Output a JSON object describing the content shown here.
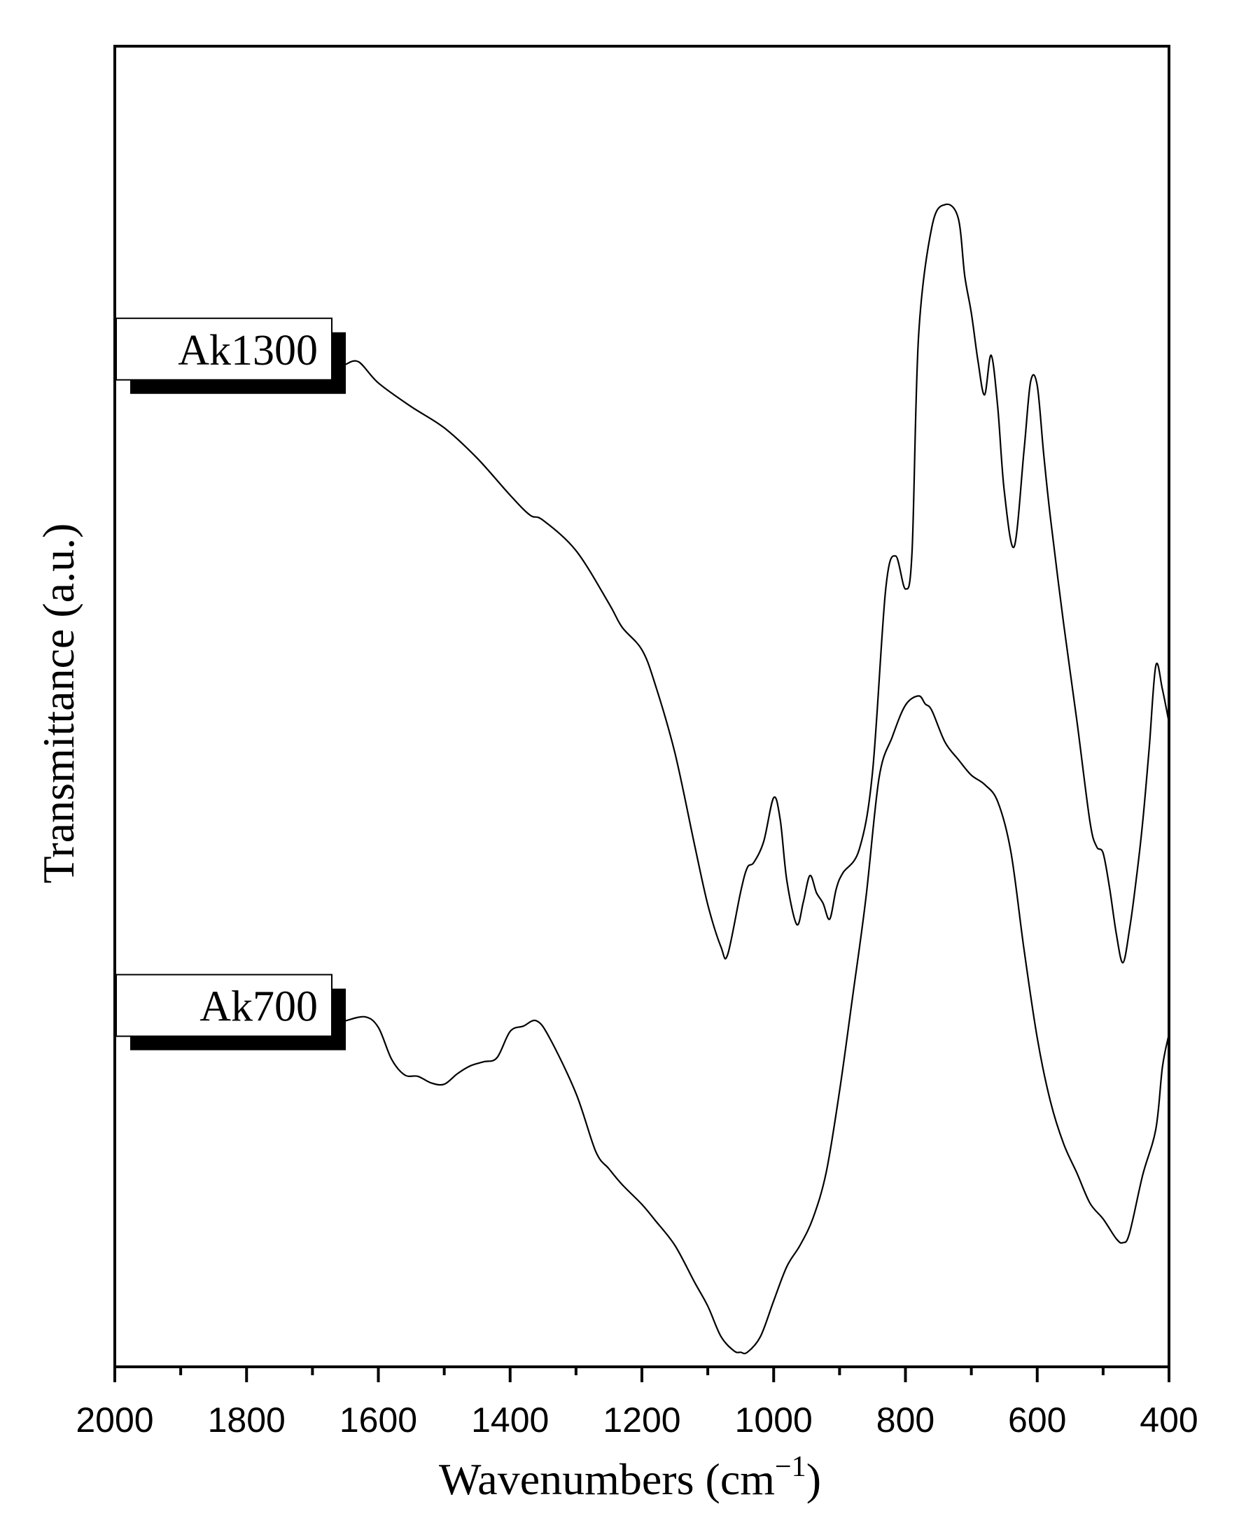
{
  "chart_data": {
    "type": "line",
    "title": "",
    "xlabel": "Wavenumbers (cm",
    "xlabel_sup": "−1",
    "xlabel_close": ")",
    "ylabel": "Transmittance (a.u.)",
    "xlim": [
      2000,
      400
    ],
    "x_reversed": true,
    "ylim": [
      0,
      1
    ],
    "y_ticks_shown": false,
    "grid": false,
    "x_ticks": [
      2000,
      1800,
      1600,
      1400,
      1200,
      1000,
      800,
      600,
      400
    ],
    "x_tick_labels": [
      "2000",
      "1800",
      "1600",
      "1400",
      "1200",
      "1000",
      "800",
      "600",
      "400"
    ],
    "x_minor_step": 100,
    "line_color": "#000000",
    "series": [
      {
        "name": "Ak1300",
        "x": [
          1650,
          1630,
          1600,
          1550,
          1500,
          1450,
          1400,
          1370,
          1350,
          1300,
          1250,
          1230,
          1200,
          1180,
          1150,
          1120,
          1100,
          1080,
          1070,
          1050,
          1040,
          1030,
          1015,
          1000,
          990,
          980,
          965,
          955,
          945,
          935,
          925,
          915,
          905,
          895,
          870,
          850,
          830,
          815,
          800,
          790,
          780,
          760,
          740,
          720,
          710,
          700,
          690,
          680,
          670,
          660,
          650,
          635,
          620,
          610,
          600,
          590,
          580,
          560,
          540,
          520,
          510,
          500,
          490,
          480,
          470,
          460,
          450,
          440,
          430,
          420,
          410,
          400
        ],
        "y": [
          0.759,
          0.761,
          0.745,
          0.727,
          0.711,
          0.688,
          0.66,
          0.645,
          0.641,
          0.618,
          0.578,
          0.56,
          0.543,
          0.517,
          0.465,
          0.395,
          0.35,
          0.318,
          0.312,
          0.36,
          0.378,
          0.382,
          0.398,
          0.431,
          0.414,
          0.368,
          0.335,
          0.352,
          0.372,
          0.359,
          0.351,
          0.339,
          0.362,
          0.374,
          0.392,
          0.45,
          0.589,
          0.614,
          0.589,
          0.617,
          0.781,
          0.863,
          0.88,
          0.87,
          0.826,
          0.798,
          0.762,
          0.736,
          0.766,
          0.727,
          0.663,
          0.621,
          0.694,
          0.746,
          0.743,
          0.69,
          0.643,
          0.563,
          0.49,
          0.413,
          0.394,
          0.389,
          0.362,
          0.328,
          0.306,
          0.331,
          0.368,
          0.412,
          0.469,
          0.531,
          0.513,
          0.488
        ]
      },
      {
        "name": "Ak700",
        "x": [
          1650,
          1620,
          1600,
          1580,
          1560,
          1540,
          1520,
          1500,
          1480,
          1460,
          1440,
          1420,
          1400,
          1380,
          1360,
          1340,
          1300,
          1270,
          1250,
          1230,
          1200,
          1180,
          1150,
          1120,
          1100,
          1080,
          1060,
          1050,
          1040,
          1020,
          1000,
          980,
          960,
          940,
          920,
          900,
          880,
          860,
          840,
          820,
          800,
          780,
          770,
          760,
          740,
          720,
          700,
          680,
          660,
          640,
          620,
          600,
          580,
          560,
          540,
          520,
          500,
          480,
          470,
          460,
          440,
          420,
          410,
          400
        ],
        "y": [
          0.262,
          0.265,
          0.257,
          0.233,
          0.221,
          0.22,
          0.215,
          0.214,
          0.222,
          0.228,
          0.231,
          0.234,
          0.254,
          0.258,
          0.262,
          0.249,
          0.207,
          0.163,
          0.15,
          0.138,
          0.123,
          0.111,
          0.092,
          0.064,
          0.046,
          0.023,
          0.012,
          0.011,
          0.011,
          0.023,
          0.05,
          0.076,
          0.092,
          0.113,
          0.148,
          0.209,
          0.281,
          0.355,
          0.446,
          0.477,
          0.501,
          0.508,
          0.502,
          0.497,
          0.473,
          0.46,
          0.448,
          0.441,
          0.428,
          0.39,
          0.316,
          0.249,
          0.201,
          0.169,
          0.147,
          0.124,
          0.112,
          0.097,
          0.094,
          0.101,
          0.145,
          0.18,
          0.227,
          0.252
        ]
      }
    ]
  }
}
